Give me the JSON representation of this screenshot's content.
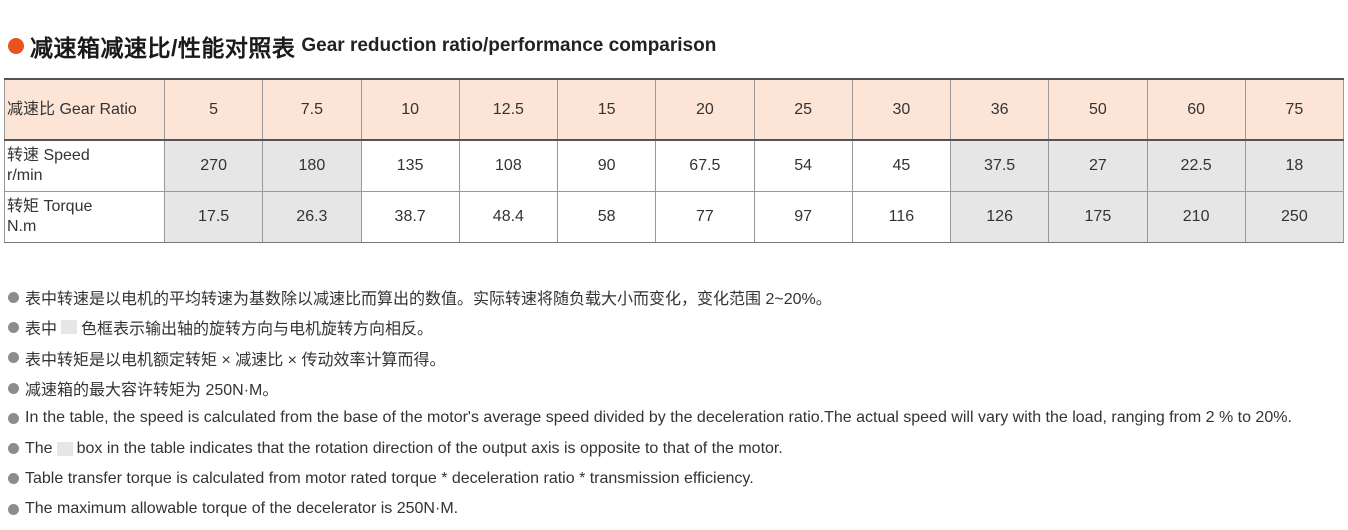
{
  "title": {
    "cn": "减速箱减速比/性能对照表",
    "en": "Gear reduction ratio/performance comparison",
    "accent_color": "#e8531f",
    "icon": "orange-dot-icon"
  },
  "table": {
    "header_label": "减速比 Gear Ratio",
    "ratios": [
      "5",
      "7.5",
      "10",
      "12.5",
      "15",
      "20",
      "25",
      "30",
      "36",
      "50",
      "60",
      "75"
    ],
    "speed": {
      "label": "转速 Speed",
      "unit": "r/min",
      "values": [
        "270",
        "180",
        "135",
        "108",
        "90",
        "67.5",
        "54",
        "45",
        "37.5",
        "27",
        "22.5",
        "18"
      ]
    },
    "torque": {
      "label": "转矩 Torque",
      "unit": "N.m",
      "values": [
        "17.5",
        "26.3",
        "38.7",
        "48.4",
        "58",
        "77",
        "97",
        "116",
        "126",
        "175",
        "210",
        "250"
      ]
    },
    "gray_columns": [
      0,
      1,
      8,
      9,
      10,
      11
    ],
    "header_bg": "#fce5d6",
    "gray_cell_bg": "#e6e6e6"
  },
  "notes": {
    "cn_1": "表中转速是以电机的平均转速为基数除以减速比而算出的数值。实际转速将随负载大小而变化，变化范围 2~20%。",
    "cn_2a": "表中",
    "cn_2b": "色框表示输出轴的旋转方向与电机旋转方向相反。",
    "cn_3": "表中转矩是以电机额定转矩 × 减速比 × 传动效率计算而得。",
    "cn_4": "减速箱的最大容许转矩为 250N·M。",
    "en_1": "In the table, the speed is calculated from the base of the motor's average speed divided by the deceleration ratio.The actual speed will vary with the load, ranging from 2 % to 20%.",
    "en_2a": "The",
    "en_2b": "box in the table indicates that the rotation direction of the output axis is opposite to that of the motor.",
    "en_3": "Table transfer torque is calculated from motor rated torque * deceleration ratio * transmission efficiency.",
    "en_4": "The maximum allowable torque of the decelerator is 250N·M."
  }
}
